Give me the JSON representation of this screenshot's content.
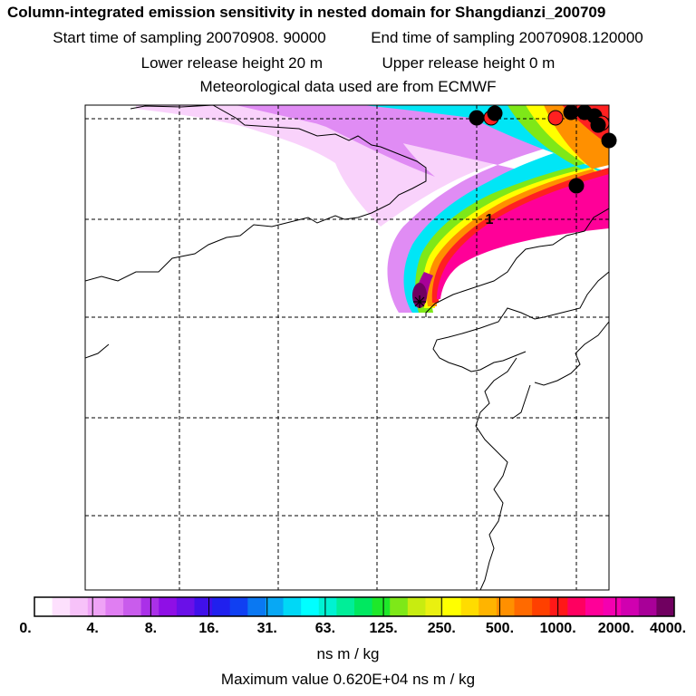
{
  "header": {
    "title": "Column-integrated emission sensitivity in nested domain for Shangdianzi_200709",
    "start_time": "Start time of sampling 20070908. 90000",
    "end_time": "End time of sampling 20070908.120000",
    "lower_height": "Lower release height   20 m",
    "upper_height": "Upper release height    0 m",
    "met_data": "Meteorological data used are from ECMWF"
  },
  "map": {
    "receptor_marker": "1",
    "release_site_icon": "star-icon"
  },
  "colorbar": {
    "tick_labels": [
      "0.",
      "4.",
      "8.",
      "16.",
      "31.",
      "63.",
      "125.",
      "250.",
      "500.",
      "1000.",
      "2000.",
      "4000."
    ],
    "unit": "ns m / kg",
    "colors": [
      "#ffffff",
      "#fde0fd",
      "#f7c2f9",
      "#efa3f6",
      "#e07ef2",
      "#c95cec",
      "#aa30e8",
      "#8f0fe6",
      "#6a10e8",
      "#4010ea",
      "#2020ee",
      "#1040f2",
      "#0a78f2",
      "#08a8f4",
      "#00d8f6",
      "#00ffff",
      "#00f2d2",
      "#00ee98",
      "#00e860",
      "#1ee82a",
      "#7ee818",
      "#c8ec10",
      "#eaf010",
      "#ffff00",
      "#ffdc00",
      "#ffb400",
      "#ff9000",
      "#ff6a00",
      "#ff4000",
      "#ff1818",
      "#ff0060",
      "#ff0098",
      "#f400b0",
      "#d000b0",
      "#a80098",
      "#700060"
    ]
  },
  "maximum_value": "Maximum value  0.620E+04 ns m / kg"
}
